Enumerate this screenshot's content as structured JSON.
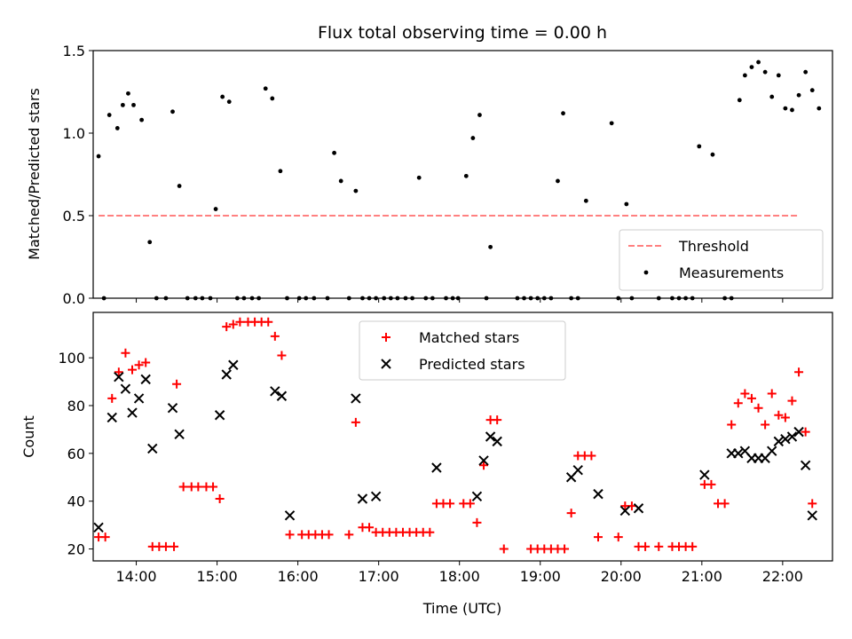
{
  "chart_data": [
    {
      "type": "scatter",
      "title": "Flux total observing time = 0.00 h",
      "xlabel": "",
      "ylabel": "Matched/Predicted stars",
      "xlim": [
        "13:28",
        "22:37"
      ],
      "ylim": [
        0,
        1.5
      ],
      "x_ticks": [
        "14:00",
        "15:00",
        "16:00",
        "17:00",
        "18:00",
        "19:00",
        "20:00",
        "21:00",
        "22:00"
      ],
      "y_ticks": [
        "0.0",
        "0.5",
        "1.0",
        "1.5"
      ],
      "legend_position": "lower-right",
      "threshold": {
        "name": "Threshold",
        "value": 0.5,
        "x": [
          "13:32",
          "22:12"
        ],
        "color": "#ff8080",
        "style": "dashed"
      },
      "series": [
        {
          "name": "Measurements",
          "marker": "dot",
          "color": "#000000",
          "points": [
            [
              "13:32",
              0.86
            ],
            [
              "13:36",
              0
            ],
            [
              "13:40",
              1.11
            ],
            [
              "13:46",
              1.03
            ],
            [
              "13:50",
              1.17
            ],
            [
              "13:54",
              1.24
            ],
            [
              "13:58",
              1.17
            ],
            [
              "14:04",
              1.08
            ],
            [
              "14:10",
              0.34
            ],
            [
              "14:15",
              0
            ],
            [
              "14:22",
              0
            ],
            [
              "14:27",
              1.13
            ],
            [
              "14:32",
              0.68
            ],
            [
              "14:38",
              0
            ],
            [
              "14:44",
              0
            ],
            [
              "14:49",
              0
            ],
            [
              "14:55",
              0
            ],
            [
              "14:59",
              0.54
            ],
            [
              "15:04",
              1.22
            ],
            [
              "15:09",
              1.19
            ],
            [
              "15:15",
              0
            ],
            [
              "15:20",
              0
            ],
            [
              "15:26",
              0
            ],
            [
              "15:31",
              0
            ],
            [
              "15:36",
              1.27
            ],
            [
              "15:41",
              1.21
            ],
            [
              "15:47",
              0.77
            ],
            [
              "15:52",
              0
            ],
            [
              "16:01",
              0
            ],
            [
              "16:06",
              0
            ],
            [
              "16:12",
              0
            ],
            [
              "16:22",
              0
            ],
            [
              "16:27",
              0.88
            ],
            [
              "16:32",
              0.71
            ],
            [
              "16:38",
              0
            ],
            [
              "16:43",
              0.65
            ],
            [
              "16:48",
              0
            ],
            [
              "16:53",
              0
            ],
            [
              "16:58",
              0
            ],
            [
              "17:04",
              0
            ],
            [
              "17:09",
              0
            ],
            [
              "17:14",
              0
            ],
            [
              "17:20",
              0
            ],
            [
              "17:25",
              0
            ],
            [
              "17:30",
              0.73
            ],
            [
              "17:35",
              0
            ],
            [
              "17:40",
              0
            ],
            [
              "17:50",
              0
            ],
            [
              "17:55",
              0
            ],
            [
              "17:59",
              0
            ],
            [
              "18:05",
              0.74
            ],
            [
              "18:10",
              0.97
            ],
            [
              "18:15",
              1.11
            ],
            [
              "18:20",
              0
            ],
            [
              "18:23",
              0.31
            ],
            [
              "18:43",
              0
            ],
            [
              "18:48",
              0
            ],
            [
              "18:53",
              0
            ],
            [
              "18:58",
              0
            ],
            [
              "19:03",
              0
            ],
            [
              "19:08",
              0
            ],
            [
              "19:13",
              0.71
            ],
            [
              "19:17",
              1.12
            ],
            [
              "19:23",
              0
            ],
            [
              "19:28",
              0
            ],
            [
              "19:34",
              0.59
            ],
            [
              "19:53",
              1.06
            ],
            [
              "19:58",
              0
            ],
            [
              "20:04",
              0.57
            ],
            [
              "20:08",
              0
            ],
            [
              "20:28",
              0
            ],
            [
              "20:38",
              0
            ],
            [
              "20:43",
              0
            ],
            [
              "20:48",
              0
            ],
            [
              "20:53",
              0
            ],
            [
              "20:58",
              0.92
            ],
            [
              "21:08",
              0.87
            ],
            [
              "21:17",
              0
            ],
            [
              "21:22",
              0
            ],
            [
              "21:28",
              1.2
            ],
            [
              "21:32",
              1.35
            ],
            [
              "21:37",
              1.4
            ],
            [
              "21:42",
              1.43
            ],
            [
              "21:47",
              1.37
            ],
            [
              "21:52",
              1.22
            ],
            [
              "21:57",
              1.35
            ],
            [
              "22:02",
              1.15
            ],
            [
              "22:07",
              1.14
            ],
            [
              "22:12",
              1.23
            ],
            [
              "22:17",
              1.37
            ],
            [
              "22:22",
              1.26
            ],
            [
              "22:27",
              1.15
            ]
          ]
        }
      ]
    },
    {
      "type": "scatter",
      "title": "",
      "xlabel": "Time (UTC)",
      "ylabel": "Count",
      "xlim": [
        "13:28",
        "22:37"
      ],
      "ylim": [
        15,
        119
      ],
      "x_ticks": [
        "14:00",
        "15:00",
        "16:00",
        "17:00",
        "18:00",
        "19:00",
        "20:00",
        "21:00",
        "22:00"
      ],
      "y_ticks": [
        "20",
        "40",
        "60",
        "80",
        "100"
      ],
      "legend_position": "upper-center",
      "series": [
        {
          "name": "Matched stars",
          "marker": "plus",
          "color": "#ff0000",
          "points": [
            [
              "13:32",
              25
            ],
            [
              "13:37",
              25
            ],
            [
              "13:42",
              83
            ],
            [
              "13:47",
              94
            ],
            [
              "13:52",
              102
            ],
            [
              "13:57",
              95
            ],
            [
              "14:02",
              97
            ],
            [
              "14:07",
              98
            ],
            [
              "14:12",
              21
            ],
            [
              "14:17",
              21
            ],
            [
              "14:22",
              21
            ],
            [
              "14:28",
              21
            ],
            [
              "14:30",
              89
            ],
            [
              "14:35",
              46
            ],
            [
              "14:41",
              46
            ],
            [
              "14:46",
              46
            ],
            [
              "14:52",
              46
            ],
            [
              "14:57",
              46
            ],
            [
              "15:02",
              41
            ],
            [
              "15:07",
              113
            ],
            [
              "15:12",
              114
            ],
            [
              "15:17",
              115
            ],
            [
              "15:23",
              115
            ],
            [
              "15:28",
              115
            ],
            [
              "15:33",
              115
            ],
            [
              "15:38",
              115
            ],
            [
              "15:43",
              109
            ],
            [
              "15:48",
              101
            ],
            [
              "15:54",
              26
            ],
            [
              "16:03",
              26
            ],
            [
              "16:08",
              26
            ],
            [
              "16:13",
              26
            ],
            [
              "16:18",
              26
            ],
            [
              "16:23",
              26
            ],
            [
              "16:38",
              26
            ],
            [
              "16:43",
              73
            ],
            [
              "16:48",
              29
            ],
            [
              "16:53",
              29
            ],
            [
              "16:58",
              27
            ],
            [
              "17:03",
              27
            ],
            [
              "17:08",
              27
            ],
            [
              "17:13",
              27
            ],
            [
              "17:18",
              27
            ],
            [
              "17:23",
              27
            ],
            [
              "17:28",
              27
            ],
            [
              "17:33",
              27
            ],
            [
              "17:38",
              27
            ],
            [
              "17:43",
              39
            ],
            [
              "17:48",
              39
            ],
            [
              "17:53",
              39
            ],
            [
              "18:03",
              39
            ],
            [
              "18:08",
              39
            ],
            [
              "18:13",
              31
            ],
            [
              "18:18",
              55
            ],
            [
              "18:23",
              74
            ],
            [
              "18:28",
              74
            ],
            [
              "18:33",
              20
            ],
            [
              "18:53",
              20
            ],
            [
              "18:58",
              20
            ],
            [
              "19:03",
              20
            ],
            [
              "19:08",
              20
            ],
            [
              "19:13",
              20
            ],
            [
              "19:18",
              20
            ],
            [
              "19:23",
              35
            ],
            [
              "19:28",
              59
            ],
            [
              "19:33",
              59
            ],
            [
              "19:38",
              59
            ],
            [
              "19:43",
              25
            ],
            [
              "19:58",
              25
            ],
            [
              "20:03",
              38
            ],
            [
              "20:08",
              38
            ],
            [
              "20:13",
              21
            ],
            [
              "20:18",
              21
            ],
            [
              "20:28",
              21
            ],
            [
              "20:38",
              21
            ],
            [
              "20:43",
              21
            ],
            [
              "20:48",
              21
            ],
            [
              "20:53",
              21
            ],
            [
              "21:02",
              47
            ],
            [
              "21:07",
              47
            ],
            [
              "21:12",
              39
            ],
            [
              "21:17",
              39
            ],
            [
              "21:22",
              72
            ],
            [
              "21:27",
              81
            ],
            [
              "21:32",
              85
            ],
            [
              "21:37",
              83
            ],
            [
              "21:42",
              79
            ],
            [
              "21:47",
              72
            ],
            [
              "21:52",
              85
            ],
            [
              "21:57",
              76
            ],
            [
              "22:02",
              75
            ],
            [
              "22:07",
              82
            ],
            [
              "22:12",
              94
            ],
            [
              "22:17",
              69
            ],
            [
              "22:22",
              39
            ]
          ]
        },
        {
          "name": "Predicted stars",
          "marker": "x",
          "color": "#000000",
          "points": [
            [
              "13:32",
              29
            ],
            [
              "13:42",
              75
            ],
            [
              "13:47",
              92
            ],
            [
              "13:52",
              87
            ],
            [
              "13:57",
              77
            ],
            [
              "14:02",
              83
            ],
            [
              "14:07",
              91
            ],
            [
              "14:12",
              62
            ],
            [
              "14:27",
              79
            ],
            [
              "14:32",
              68
            ],
            [
              "15:02",
              76
            ],
            [
              "15:07",
              93
            ],
            [
              "15:12",
              97
            ],
            [
              "15:43",
              86
            ],
            [
              "15:48",
              84
            ],
            [
              "15:54",
              34
            ],
            [
              "16:43",
              83
            ],
            [
              "16:48",
              41
            ],
            [
              "16:58",
              42
            ],
            [
              "17:43",
              54
            ],
            [
              "18:13",
              42
            ],
            [
              "18:18",
              57
            ],
            [
              "18:23",
              67
            ],
            [
              "18:28",
              65
            ],
            [
              "19:23",
              50
            ],
            [
              "19:28",
              53
            ],
            [
              "19:43",
              43
            ],
            [
              "20:03",
              36
            ],
            [
              "20:13",
              37
            ],
            [
              "21:02",
              51
            ],
            [
              "21:22",
              60
            ],
            [
              "21:27",
              60
            ],
            [
              "21:32",
              61
            ],
            [
              "21:37",
              58
            ],
            [
              "21:42",
              58
            ],
            [
              "21:47",
              58
            ],
            [
              "21:52",
              61
            ],
            [
              "21:57",
              65
            ],
            [
              "22:02",
              66
            ],
            [
              "22:07",
              67
            ],
            [
              "22:12",
              69
            ],
            [
              "22:17",
              55
            ],
            [
              "22:22",
              34
            ]
          ]
        }
      ]
    }
  ]
}
